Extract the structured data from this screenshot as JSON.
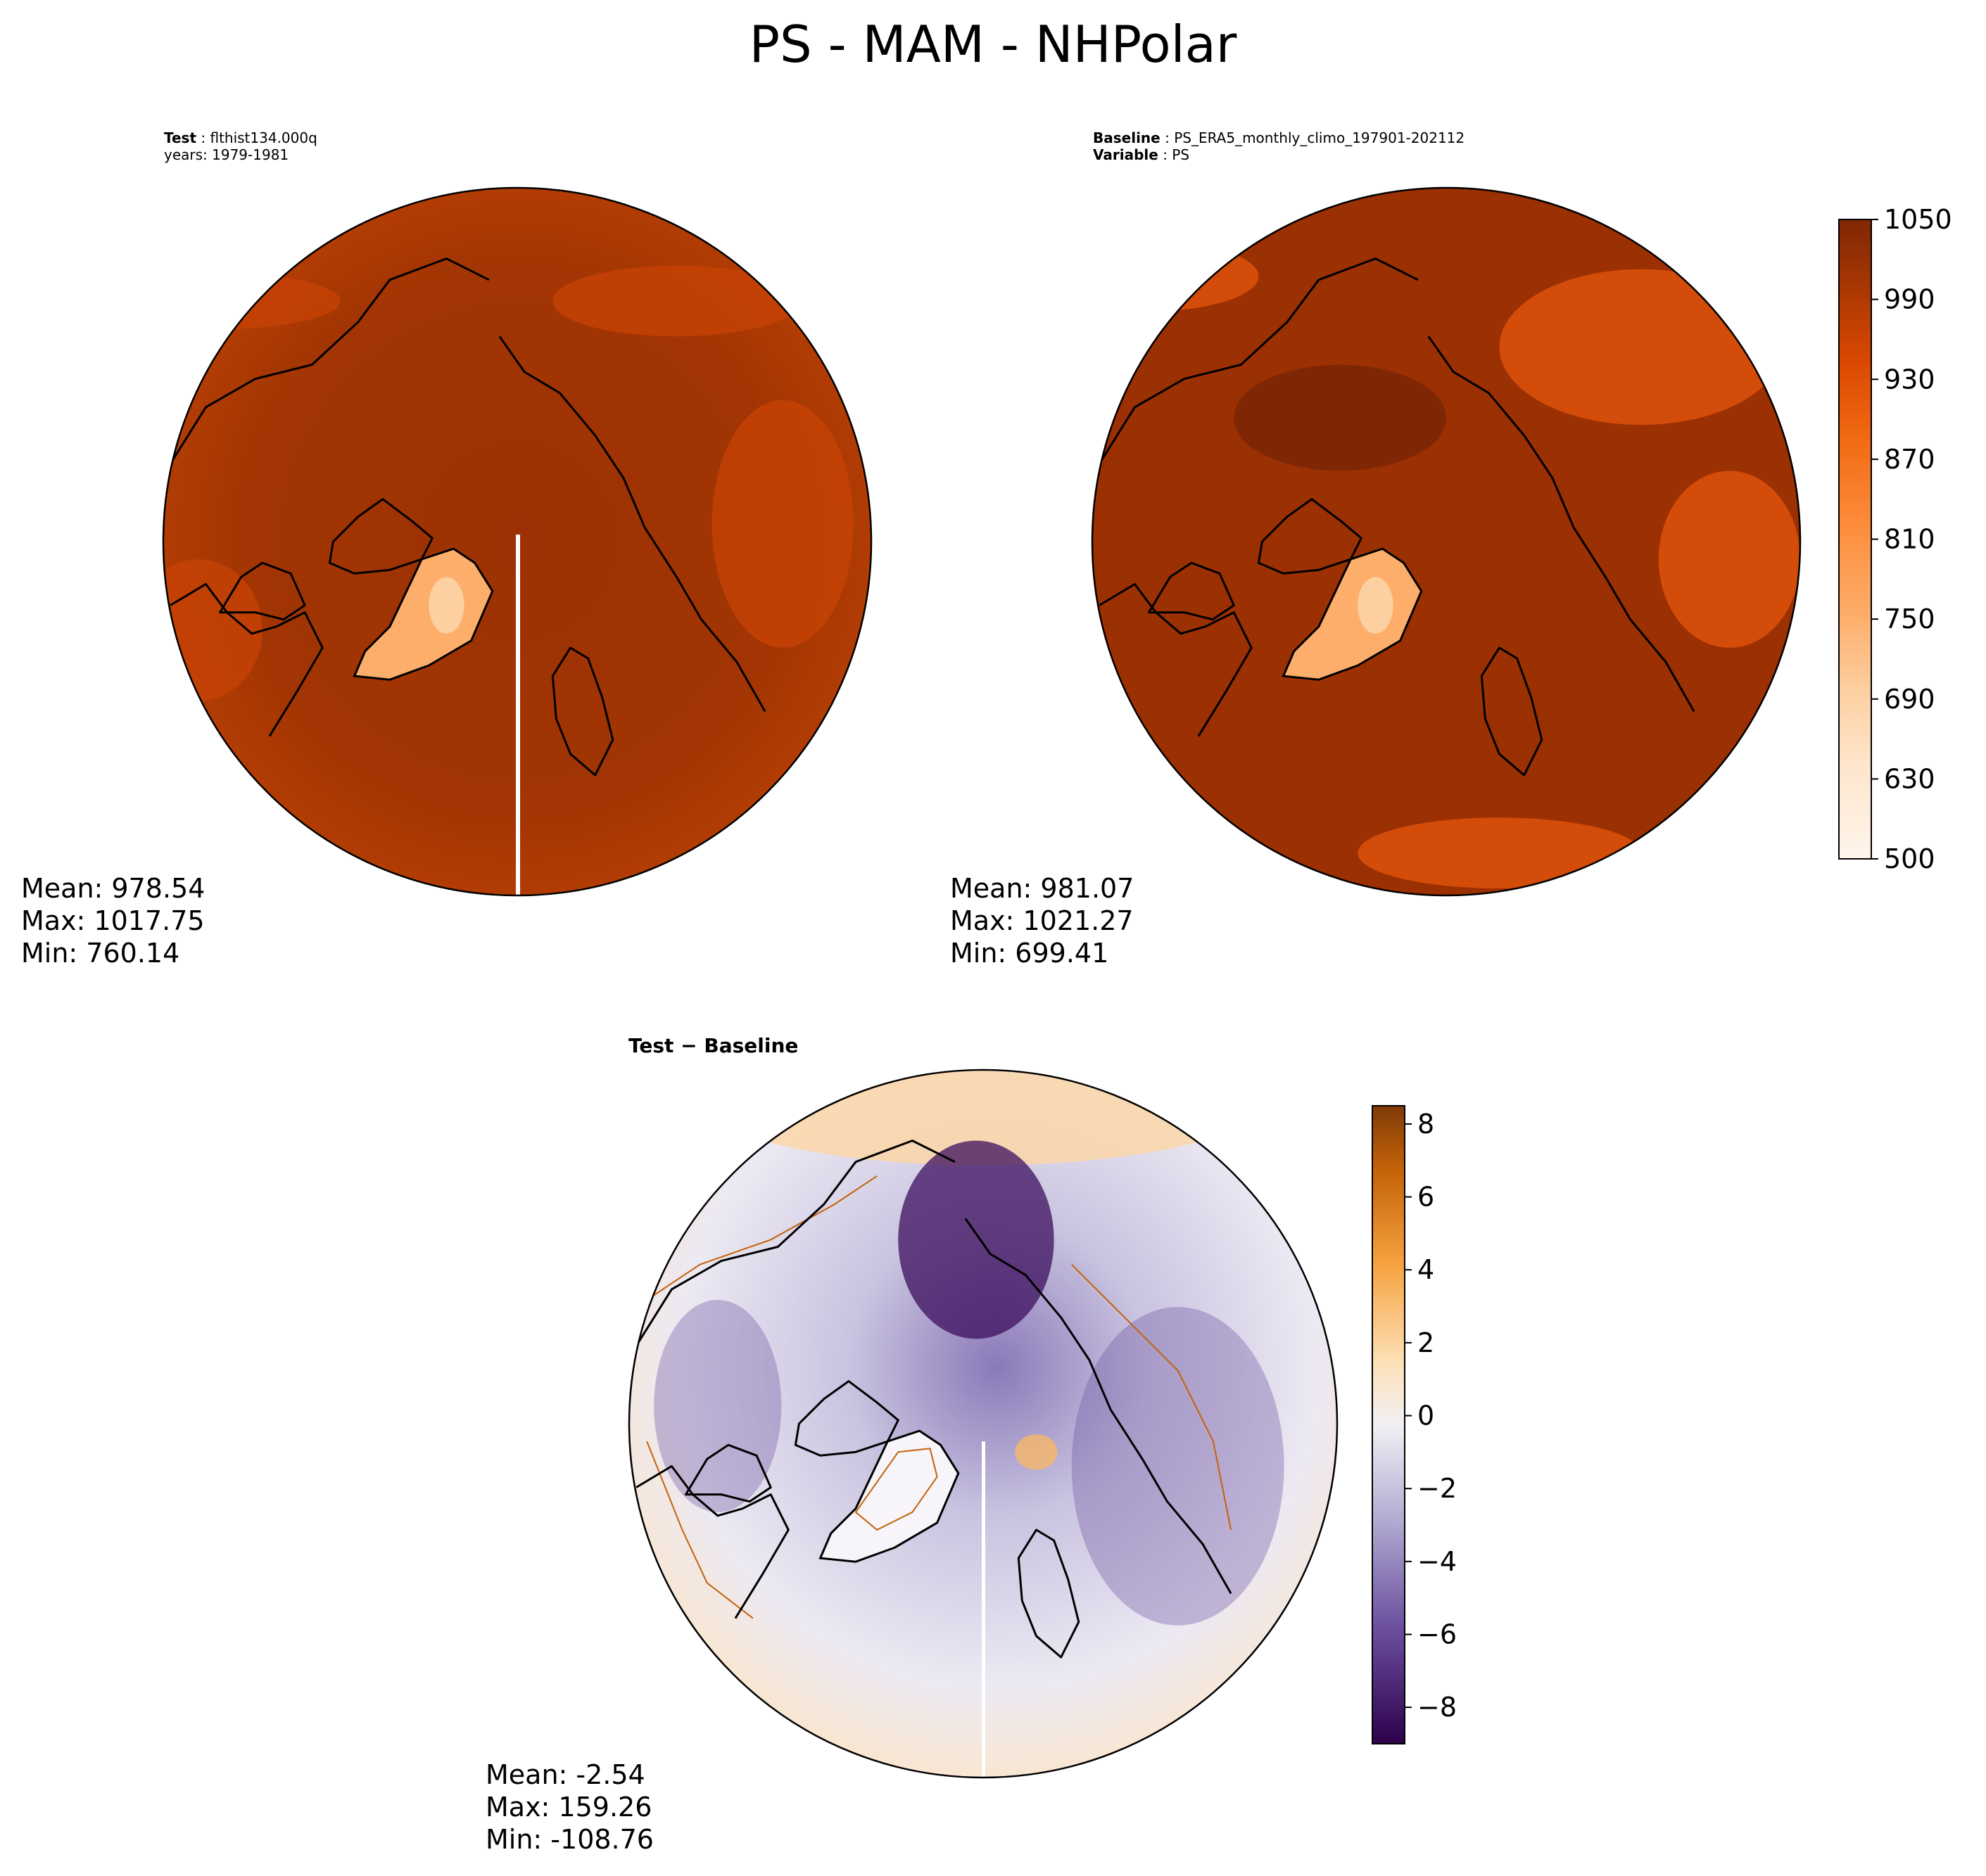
{
  "title": "PS - MAM - NHPolar",
  "panels": {
    "test": {
      "label_key": "Test",
      "label_value": "flthist134.000q",
      "line2": "years: 1979-1981",
      "stats": {
        "mean": "Mean: 978.54",
        "max": "Max: 1017.75",
        "min": "Min: 760.14"
      }
    },
    "baseline": {
      "label_key": "Baseline",
      "label_value": "PS_ERA5_monthly_climo_197901-202112",
      "label2_key": "Variable",
      "label2_value": "PS",
      "stats": {
        "mean": "Mean: 981.07",
        "max": "Max: 1021.27",
        "min": "Min: 699.41"
      }
    },
    "diff": {
      "title_left": "Test",
      "title_sep": " − ",
      "title_right": "Baseline",
      "stats": {
        "mean": "Mean: -2.54",
        "max": "Max: 159.26",
        "min": "Min: -108.76"
      }
    }
  },
  "chart_data": [
    {
      "type": "heatmap",
      "panel": "test",
      "projection": "north polar stereographic",
      "units": "hPa",
      "mean": 978.54,
      "max": 1017.75,
      "min": 760.14,
      "colormap": "Oranges",
      "clim": [
        500,
        1050
      ]
    },
    {
      "type": "heatmap",
      "panel": "baseline",
      "projection": "north polar stereographic",
      "units": "hPa",
      "mean": 981.07,
      "max": 1021.27,
      "min": 699.41,
      "colormap": "Oranges",
      "clim": [
        500,
        1050
      ],
      "colorbar_ticks": [
        "500",
        "630",
        "690",
        "750",
        "810",
        "870",
        "930",
        "990",
        "1050"
      ],
      "colorbar_levels": [
        500,
        600,
        630,
        660,
        690,
        720,
        750,
        780,
        810,
        840,
        870,
        900,
        930,
        960,
        990,
        1020,
        1050
      ]
    },
    {
      "type": "heatmap",
      "panel": "diff",
      "projection": "north polar stereographic",
      "mean": -2.54,
      "max": 159.26,
      "min": -108.76,
      "colormap": "PuOr_r",
      "clim": [
        -9,
        8.5
      ],
      "colorbar_ticks": [
        "8",
        "6",
        "4",
        "2",
        "0",
        "−2",
        "−4",
        "−6",
        "−8"
      ]
    }
  ],
  "colors": {
    "ramp_orange": [
      "#fff5eb",
      "#fee6ce",
      "#fdd0a2",
      "#fdae6b",
      "#fd8d3c",
      "#f16913",
      "#d94801",
      "#a63603",
      "#7f2704"
    ],
    "land_dark": "#992e03",
    "ocean_mid": "#c84306",
    "diff_pos": "#8a4003",
    "diff_neg": "#3c0f5e",
    "diff_zero": "#f3f3f5"
  }
}
